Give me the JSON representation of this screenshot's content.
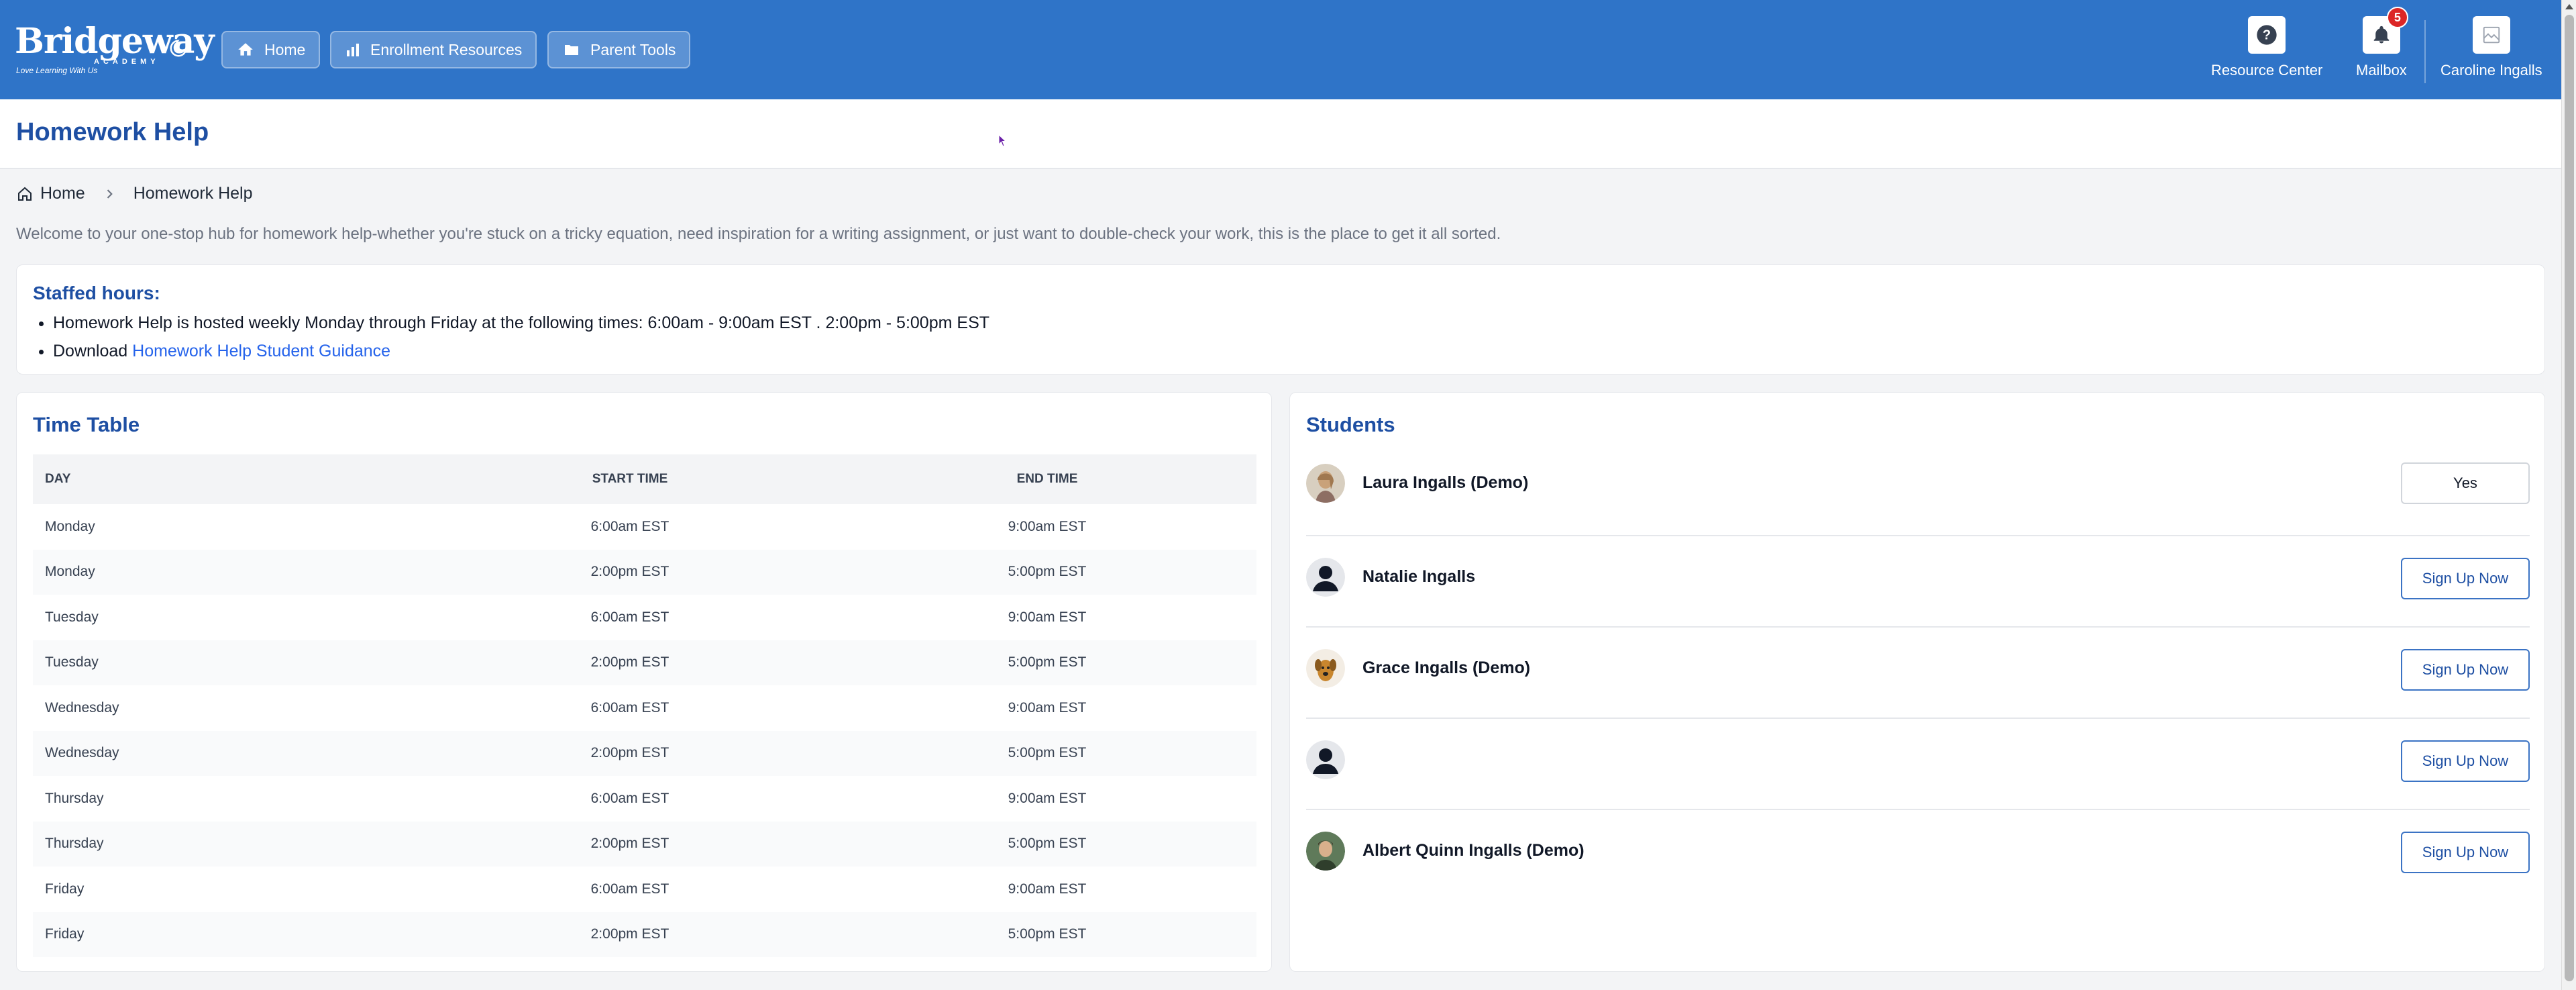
{
  "header": {
    "logo_text": "Bridgeway",
    "logo_subtext": "ACADEMY",
    "logo_tagline": "Love Learning With Us",
    "nav": [
      {
        "label": "Home",
        "icon": "home-icon"
      },
      {
        "label": "Enrollment Resources",
        "icon": "bar-chart-icon"
      },
      {
        "label": "Parent Tools",
        "icon": "folder-icon"
      }
    ],
    "tools": {
      "resource_center": "Resource Center",
      "mailbox": "Mailbox",
      "mailbox_count": "5",
      "user_name": "Caroline Ingalls"
    },
    "colors": {
      "header_bg": "#2f74c8",
      "accent": "#1e4fa3",
      "badge": "#dc2626"
    }
  },
  "page": {
    "title": "Homework Help",
    "breadcrumb": {
      "home": "Home",
      "current": "Homework Help"
    },
    "intro": "Welcome to your one-stop hub for homework help-whether you're stuck on a tricky equation, need inspiration for a writing assignment, or just want to double-check your work, this is the place to get it all sorted."
  },
  "staffed": {
    "title": "Staffed hours:",
    "line1": "Homework Help is hosted weekly Monday through Friday at the following times: 6:00am - 9:00am EST . 2:00pm - 5:00pm EST",
    "line2_prefix": "Download ",
    "line2_link": "Homework Help Student Guidance"
  },
  "timetable": {
    "title": "Time Table",
    "headers": {
      "day": "DAY",
      "start": "START TIME",
      "end": "END TIME"
    },
    "rows": [
      {
        "day": "Monday",
        "start": "6:00am EST",
        "end": "9:00am EST"
      },
      {
        "day": "Monday",
        "start": "2:00pm EST",
        "end": "5:00pm EST"
      },
      {
        "day": "Tuesday",
        "start": "6:00am EST",
        "end": "9:00am EST"
      },
      {
        "day": "Tuesday",
        "start": "2:00pm EST",
        "end": "5:00pm EST"
      },
      {
        "day": "Wednesday",
        "start": "6:00am EST",
        "end": "9:00am EST"
      },
      {
        "day": "Wednesday",
        "start": "2:00pm EST",
        "end": "5:00pm EST"
      },
      {
        "day": "Thursday",
        "start": "6:00am EST",
        "end": "9:00am EST"
      },
      {
        "day": "Thursday",
        "start": "2:00pm EST",
        "end": "5:00pm EST"
      },
      {
        "day": "Friday",
        "start": "6:00am EST",
        "end": "9:00am EST"
      },
      {
        "day": "Friday",
        "start": "2:00pm EST",
        "end": "5:00pm EST"
      }
    ]
  },
  "students": {
    "title": "Students",
    "list": [
      {
        "name": "Laura Ingalls (Demo)",
        "button": "Yes",
        "avatar": "photo"
      },
      {
        "name": "Natalie Ingalls",
        "button": "Sign Up Now",
        "avatar": "default"
      },
      {
        "name": "Grace Ingalls (Demo)",
        "button": "Sign Up Now",
        "avatar": "dog"
      },
      {
        "name": "",
        "button": "Sign Up Now",
        "avatar": "default"
      },
      {
        "name": "Albert Quinn Ingalls (Demo)",
        "button": "Sign Up Now",
        "avatar": "photo"
      }
    ]
  }
}
